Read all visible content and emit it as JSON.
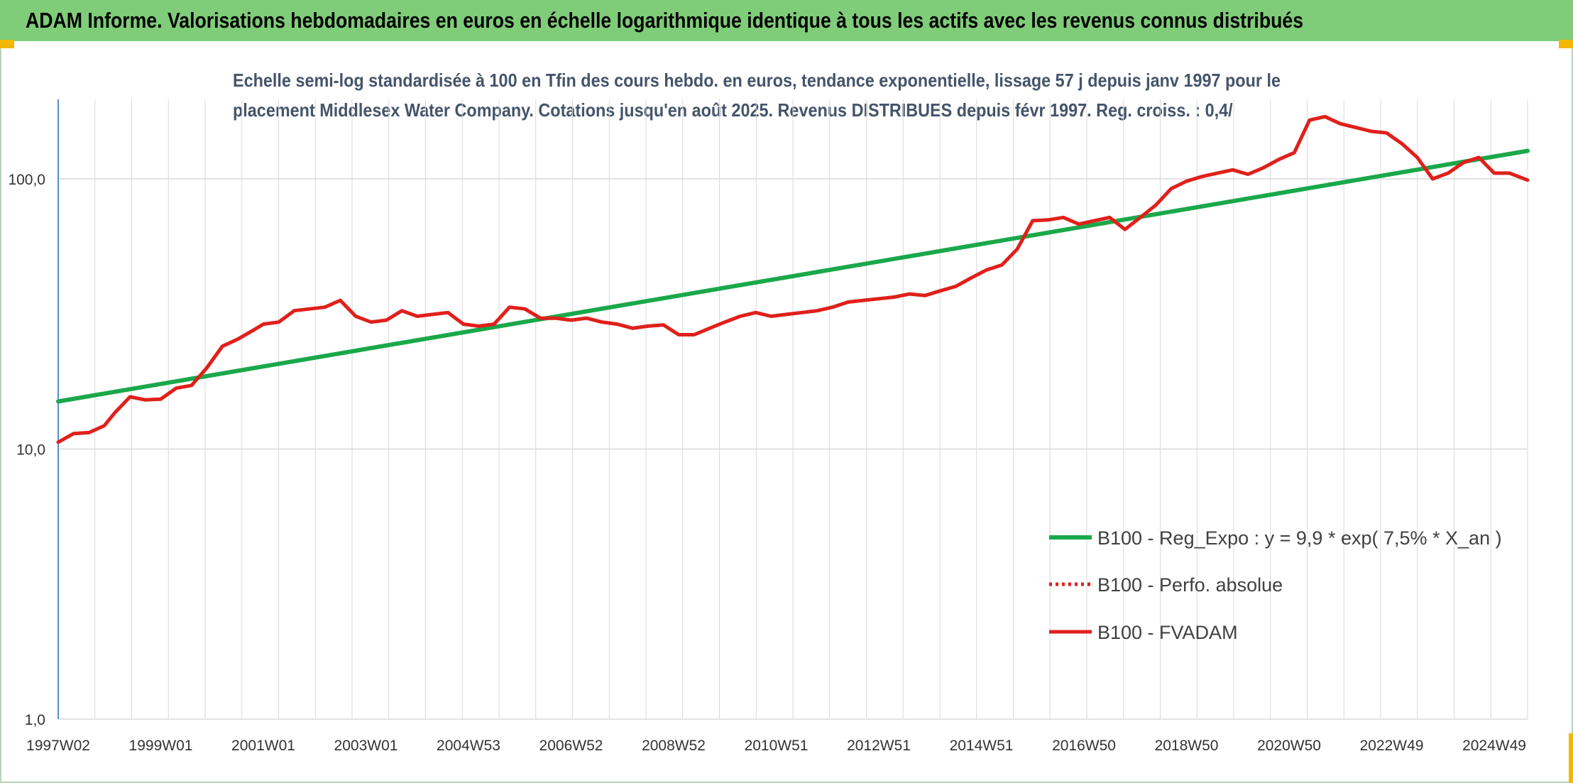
{
  "header": {
    "banner_title": "ADAM Informe. Valorisations hebdomadaires en euros en échelle logarithmique identique à tous les actifs avec les revenus connus distribués"
  },
  "colors": {
    "banner_bg": "#7fcd78",
    "accent_corner": "#f2b705",
    "regression": "#1aa84a",
    "perf": "#e0201b",
    "fvadam": "#e0201b",
    "grid": "#d9d9d9"
  },
  "chart_data": {
    "type": "line",
    "title": "Echelle semi-log standardisée à 100 en Tfin des cours hebdo. en euros, tendance exponentielle, lissage 57 j depuis janv 1997 pour le placement Middlesex Water Company. Cotations jusqu'en août 2025. Revenus DISTRIBUES depuis févr 1997. Reg. croiss. : 0,4/",
    "title_lines": [
      "Echelle semi-log standardisée à 100 en Tfin des cours hebdo. en euros, tendance exponentielle, lissage 57 j depuis janv 1997 pour le",
      "placement Middlesex Water Company. Cotations jusqu'en août 2025. Revenus DISTRIBUES depuis févr 1997. Reg. croiss. : 0,4/"
    ],
    "y_scale": "log",
    "ylim": [
      1,
      200
    ],
    "y_ticks": [
      "1,0",
      "10,0",
      "100,0"
    ],
    "x_ticks": [
      "1997W02",
      "1999W01",
      "2001W01",
      "2003W01",
      "2004W53",
      "2006W52",
      "2008W52",
      "2010W51",
      "2012W51",
      "2014W51",
      "2016W50",
      "2018W50",
      "2020W50",
      "2022W49",
      "2024W49"
    ],
    "x_range": [
      1997.0,
      2025.65
    ],
    "grid": "vertical and horizontal",
    "legend_position": "bottom-right",
    "series": [
      {
        "name": "B100 - Reg_Expo : y = 9,9 * exp( 7,5% *  X_an )",
        "style": "solid-green",
        "x": [
          1997.0,
          2025.65
        ],
        "y": [
          15.0,
          127.0
        ]
      },
      {
        "name": "B100 - Perfo. absolue",
        "style": "dotted-red",
        "x": [],
        "y": []
      },
      {
        "name": "B100 - FVADAM",
        "style": "solid-red",
        "x": [
          1997.0,
          1997.3,
          1997.6,
          1997.9,
          1998.1,
          1998.4,
          1998.7,
          1999.0,
          1999.3,
          1999.6,
          1999.9,
          2000.2,
          2000.5,
          2000.8,
          2001.0,
          2001.3,
          2001.6,
          2001.9,
          2002.2,
          2002.5,
          2002.8,
          2003.1,
          2003.4,
          2003.7,
          2004.0,
          2004.3,
          2004.6,
          2004.9,
          2005.2,
          2005.5,
          2005.8,
          2006.1,
          2006.4,
          2006.7,
          2007.0,
          2007.3,
          2007.6,
          2007.9,
          2008.2,
          2008.5,
          2008.8,
          2009.1,
          2009.4,
          2009.7,
          2010.0,
          2010.3,
          2010.6,
          2010.9,
          2011.2,
          2011.5,
          2011.8,
          2012.1,
          2012.4,
          2012.7,
          2013.0,
          2013.3,
          2013.6,
          2013.9,
          2014.2,
          2014.5,
          2014.8,
          2015.1,
          2015.4,
          2015.7,
          2016.0,
          2016.3,
          2016.6,
          2016.9,
          2017.2,
          2017.5,
          2017.8,
          2018.1,
          2018.4,
          2018.7,
          2019.0,
          2019.3,
          2019.6,
          2019.9,
          2020.2,
          2020.5,
          2020.8,
          2021.1,
          2021.4,
          2021.7,
          2022.0,
          2022.3,
          2022.6,
          2022.9,
          2023.2,
          2023.5,
          2023.8,
          2024.1,
          2024.4,
          2024.7,
          2025.0,
          2025.3,
          2025.65
        ],
        "y": [
          10.6,
          11.4,
          11.5,
          12.2,
          13.6,
          15.6,
          15.2,
          15.3,
          16.8,
          17.2,
          20.0,
          24.0,
          25.5,
          27.5,
          29.0,
          29.5,
          32.5,
          33.0,
          33.5,
          35.5,
          31.0,
          29.5,
          30.0,
          32.5,
          31.0,
          31.5,
          32.0,
          29.0,
          28.5,
          29.0,
          33.5,
          33.0,
          30.5,
          30.5,
          30.0,
          30.5,
          29.5,
          29.0,
          28.0,
          28.5,
          28.8,
          26.5,
          26.5,
          28.0,
          29.5,
          31.0,
          32.0,
          31.0,
          31.5,
          32.0,
          32.5,
          33.5,
          35.0,
          35.5,
          36.0,
          36.5,
          37.5,
          37.0,
          38.5,
          40.0,
          43.0,
          46.0,
          48.0,
          55.0,
          70.0,
          70.5,
          72.0,
          68.0,
          70.0,
          72.0,
          65.0,
          72.0,
          80.0,
          92.0,
          98.0,
          102.0,
          105.0,
          108.0,
          104.0,
          110.0,
          118.0,
          125.0,
          165.0,
          170.0,
          160.0,
          155.0,
          150.0,
          148.0,
          135.0,
          120.0,
          100.0,
          105.0,
          115.0,
          120.0,
          105.0,
          105.0,
          99.0
        ]
      }
    ]
  }
}
